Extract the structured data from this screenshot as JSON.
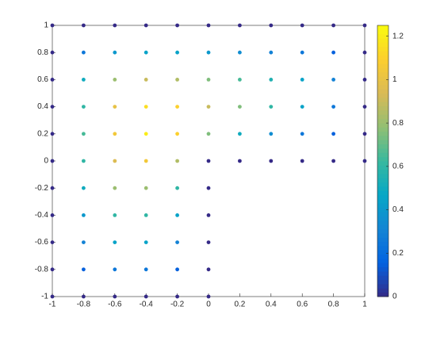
{
  "chart_data": {
    "type": "scatter",
    "x": [
      -1,
      -0.8,
      -0.6,
      -0.4,
      -0.2,
      0,
      0.2,
      0.4,
      0.6,
      0.8,
      1,
      -1,
      -0.8,
      -0.6,
      -0.4,
      -0.2,
      0,
      0.2,
      0.4,
      0.6,
      0.8,
      1,
      -1,
      -0.8,
      -0.6,
      -0.4,
      -0.2,
      0,
      0.2,
      0.4,
      0.6,
      0.8,
      1,
      -1,
      -0.8,
      -0.6,
      -0.4,
      -0.2,
      0,
      0.2,
      0.4,
      0.6,
      0.8,
      1,
      -1,
      -0.8,
      -0.6,
      -0.4,
      -0.2,
      0,
      0.2,
      0.4,
      0.6,
      0.8,
      1,
      -1,
      -0.8,
      -0.6,
      -0.4,
      -0.2,
      0,
      0.2,
      0.4,
      0.6,
      0.8,
      1,
      -1,
      -0.8,
      -0.6,
      -0.4,
      -0.2,
      0,
      -1,
      -0.8,
      -0.6,
      -0.4,
      -0.2,
      0,
      -1,
      -0.8,
      -0.6,
      -0.4,
      -0.2,
      0,
      -1,
      -0.8,
      -0.6,
      -0.4,
      -0.2,
      0,
      -1,
      -0.8,
      -0.6,
      -0.4,
      -0.2,
      0
    ],
    "y": [
      1,
      1,
      1,
      1,
      1,
      1,
      1,
      1,
      1,
      1,
      1,
      0.8,
      0.8,
      0.8,
      0.8,
      0.8,
      0.8,
      0.8,
      0.8,
      0.8,
      0.8,
      0.8,
      0.6,
      0.6,
      0.6,
      0.6,
      0.6,
      0.6,
      0.6,
      0.6,
      0.6,
      0.6,
      0.6,
      0.4,
      0.4,
      0.4,
      0.4,
      0.4,
      0.4,
      0.4,
      0.4,
      0.4,
      0.4,
      0.4,
      0.2,
      0.2,
      0.2,
      0.2,
      0.2,
      0.2,
      0.2,
      0.2,
      0.2,
      0.2,
      0.2,
      0,
      0,
      0,
      0,
      0,
      0,
      0,
      0,
      0,
      0,
      0,
      -0.2,
      -0.2,
      -0.2,
      -0.2,
      -0.2,
      -0.2,
      -0.4,
      -0.4,
      -0.4,
      -0.4,
      -0.4,
      -0.4,
      -0.6,
      -0.6,
      -0.6,
      -0.6,
      -0.6,
      -0.6,
      -0.8,
      -0.8,
      -0.8,
      -0.8,
      -0.8,
      -0.8,
      -1,
      -1,
      -1,
      -1,
      -1,
      -1
    ],
    "color_values": [
      0,
      0,
      0,
      0,
      0,
      0,
      0,
      0,
      0,
      0,
      0,
      0,
      0.25,
      0.4,
      0.45,
      0.45,
      0.4,
      0.35,
      0.3,
      0.25,
      0.15,
      0,
      0,
      0.5,
      0.8,
      0.9,
      0.85,
      0.75,
      0.65,
      0.55,
      0.45,
      0.3,
      0,
      0,
      0.6,
      1.0,
      1.15,
      1.1,
      0.9,
      0.75,
      0.6,
      0.45,
      0.25,
      0,
      0,
      0.65,
      1.05,
      1.2,
      1.1,
      0.75,
      0.5,
      0.35,
      0.25,
      0.15,
      0,
      0,
      0.6,
      0.95,
      1.05,
      0.85,
      0,
      0,
      0,
      0,
      0,
      0,
      0,
      0.5,
      0.8,
      0.8,
      0.6,
      0,
      0,
      0.4,
      0.6,
      0.6,
      0.45,
      0,
      0,
      0.3,
      0.45,
      0.45,
      0.3,
      0,
      0,
      0.15,
      0.25,
      0.25,
      0.15,
      0,
      0,
      0,
      0,
      0,
      0,
      0
    ],
    "colormap": [
      "#352a87",
      "#0363e1",
      "#1485d4",
      "#06a7c6",
      "#38b99e",
      "#92bf73",
      "#d9ba56",
      "#fcce2e",
      "#f9fb0e"
    ],
    "clim": [
      0,
      1.25
    ],
    "cticks": [
      0,
      0.2,
      0.4,
      0.6,
      0.8,
      1,
      1.2
    ],
    "xlim": [
      -1,
      1
    ],
    "xticks": [
      -1,
      -0.8,
      -0.6,
      -0.4,
      -0.2,
      0,
      0.2,
      0.4,
      0.6,
      0.8,
      1
    ],
    "ylim": [
      -1,
      1
    ],
    "yticks": [
      -1,
      -0.8,
      -0.6,
      -0.4,
      -0.2,
      0,
      0.2,
      0.4,
      0.6,
      0.8,
      1
    ]
  }
}
